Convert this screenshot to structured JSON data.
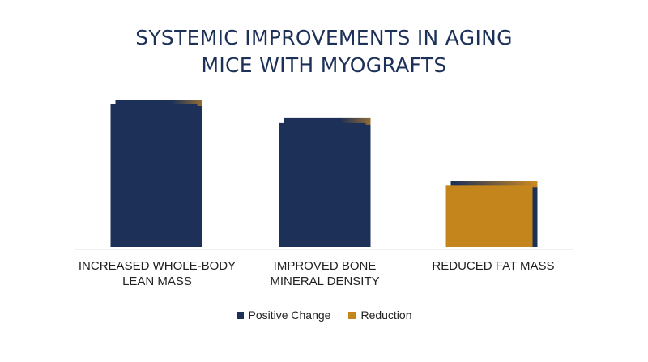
{
  "title_lines": [
    "SYSTEMIC IMPROVEMENTS IN AGING",
    "MICE WITH MYOGRAFTS"
  ],
  "category_lines": [
    [
      "INCREASED WHOLE-BODY",
      "LEAN MASS"
    ],
    [
      "IMPROVED BONE",
      "MINERAL DENSITY"
    ],
    [
      "REDUCED FAT MASS"
    ]
  ],
  "legend": [
    {
      "label": "Positive Change",
      "color": "#1d3158"
    },
    {
      "label": "Reduction",
      "color": "#c4851c"
    }
  ],
  "colors": {
    "positive": "#1d3158",
    "reduction": "#c4851c",
    "accent": "#d58e1f",
    "baseline": "#dddddd"
  },
  "chart_data": {
    "type": "bar",
    "title": "SYSTEMIC IMPROVEMENTS IN AGING MICE WITH MYOGRAFTS",
    "categories": [
      "INCREASED WHOLE-BODY LEAN MASS",
      "IMPROVED BONE MINERAL DENSITY",
      "REDUCED FAT MASS"
    ],
    "values": [
      100,
      87,
      43
    ],
    "series_by_category": [
      "Positive Change",
      "Positive Change",
      "Reduction"
    ],
    "ylim": [
      0,
      100
    ],
    "grid": false,
    "legend_position": "bottom-center",
    "xlabel": "",
    "ylabel": ""
  }
}
